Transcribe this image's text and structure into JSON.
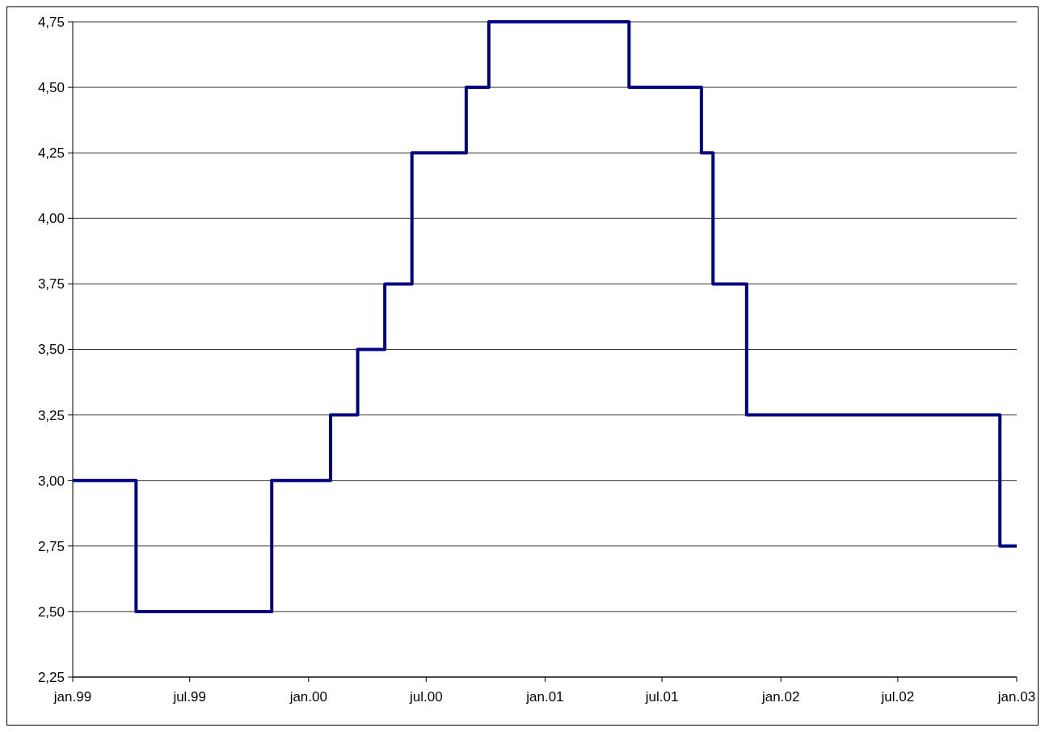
{
  "chart_data": {
    "type": "step",
    "x": [
      "1999-01-01",
      "1999-04-09",
      "1999-11-05",
      "2000-02-04",
      "2000-03-17",
      "2000-04-28",
      "2000-06-09",
      "2000-09-01",
      "2000-10-06",
      "2001-05-11",
      "2001-08-31",
      "2001-09-18",
      "2001-11-09",
      "2002-12-06",
      "2003-01-01"
    ],
    "series": [
      {
        "color": "#000080",
        "values": [
          3.0,
          2.5,
          3.0,
          3.25,
          3.5,
          3.75,
          4.25,
          4.5,
          4.75,
          4.5,
          4.25,
          3.75,
          3.25,
          2.75,
          2.75
        ]
      }
    ],
    "xlim": [
      "1999-01-01",
      "2003-01-01"
    ],
    "xticks": [
      {
        "value": "1999-01-01",
        "label": "jan.99"
      },
      {
        "value": "1999-07-01",
        "label": "jul.99"
      },
      {
        "value": "2000-01-01",
        "label": "jan.00"
      },
      {
        "value": "2000-07-01",
        "label": "jul.00"
      },
      {
        "value": "2001-01-01",
        "label": "jan.01"
      },
      {
        "value": "2001-07-01",
        "label": "jul.01"
      },
      {
        "value": "2002-01-01",
        "label": "jan.02"
      },
      {
        "value": "2002-07-01",
        "label": "jul.02"
      },
      {
        "value": "2003-01-01",
        "label": "jan.03"
      }
    ],
    "ylim": [
      2.25,
      4.75
    ],
    "yticks": [
      {
        "value": 2.25,
        "label": "2,25"
      },
      {
        "value": 2.5,
        "label": "2,50"
      },
      {
        "value": 2.75,
        "label": "2,75"
      },
      {
        "value": 3.0,
        "label": "3,00"
      },
      {
        "value": 3.25,
        "label": "3,25"
      },
      {
        "value": 3.5,
        "label": "3,50"
      },
      {
        "value": 3.75,
        "label": "3,75"
      },
      {
        "value": 4.0,
        "label": "4,00"
      },
      {
        "value": 4.25,
        "label": "4,25"
      },
      {
        "value": 4.5,
        "label": "4,50"
      },
      {
        "value": 4.75,
        "label": "4,75"
      }
    ],
    "grid": "y",
    "line_style": "solid"
  }
}
